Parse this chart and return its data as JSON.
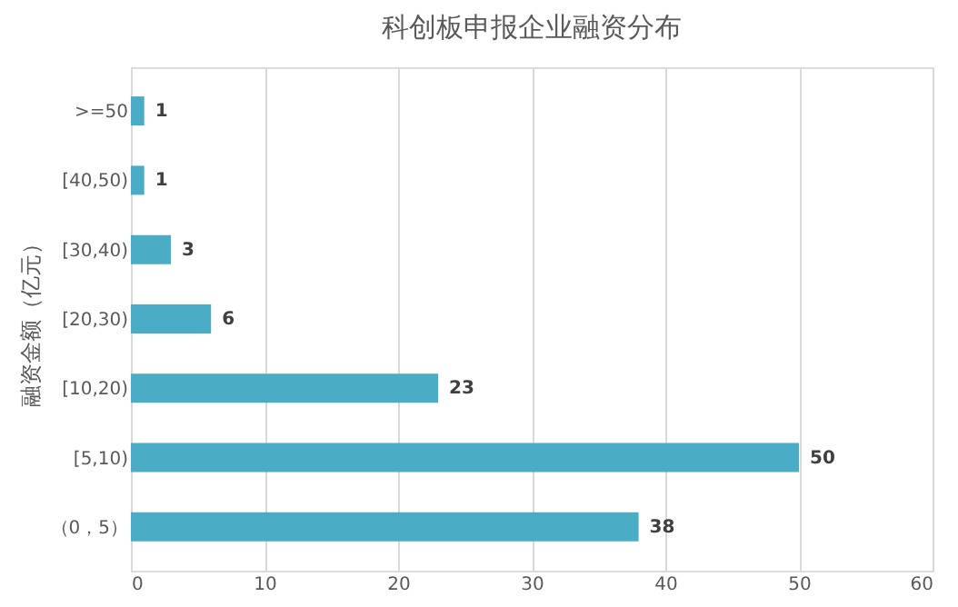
{
  "chart_data": {
    "type": "bar",
    "orientation": "horizontal",
    "title": "科创板申报企业融资分布",
    "ylabel": "融资金额（亿元）",
    "categories": [
      ">=50",
      "[40,50)",
      "[30,40)",
      "[20,30)",
      "[10,20)",
      "[5,10)",
      "（0，5）"
    ],
    "values": [
      1,
      1,
      3,
      6,
      23,
      50,
      38
    ],
    "color": "#4bacc6",
    "xlim": [
      0,
      60
    ],
    "xticks": [
      0,
      10,
      20,
      30,
      40,
      50,
      60
    ],
    "grid": "x",
    "data_labels": true
  }
}
